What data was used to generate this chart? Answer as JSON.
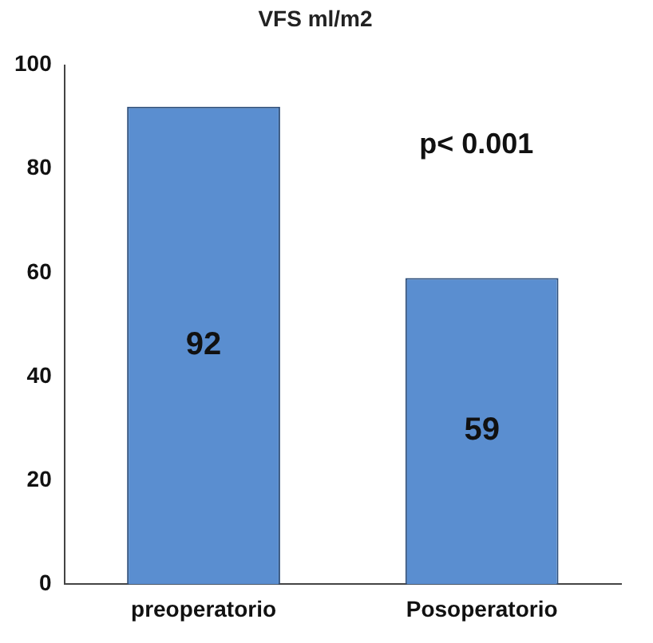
{
  "chart_data": {
    "type": "bar",
    "title": "VFS ml/m2",
    "categories": [
      "preoperatorio",
      "Posoperatorio"
    ],
    "values": [
      92,
      59
    ],
    "color": "#5a8ed0",
    "ylim": [
      0,
      100
    ],
    "yticks": [
      0,
      20,
      40,
      60,
      80,
      100
    ],
    "grid": false,
    "legend": false,
    "data_labels": true,
    "annotations": [
      "p< 0.001"
    ]
  }
}
